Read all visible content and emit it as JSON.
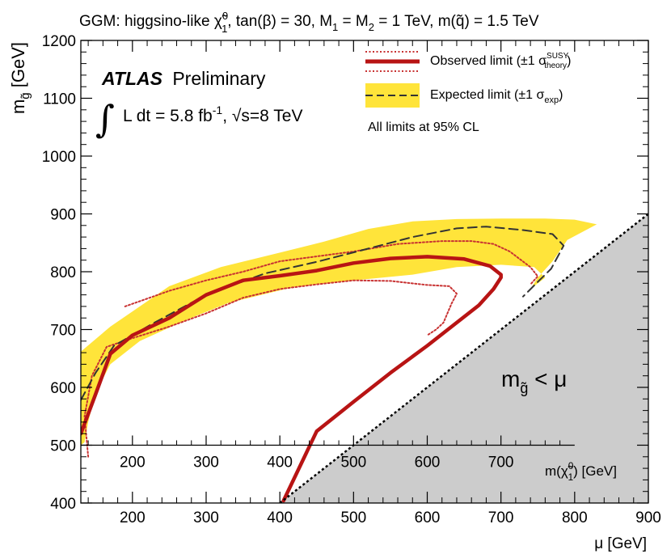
{
  "chart_data": {
    "type": "line",
    "title": "GGM: higgsino-like χ̃₁⁰, tan(β) = 30, M₁ = M₂ = 1 TeV, m(q̃) = 1.5 TeV",
    "title_parts": {
      "lead": "GGM: higgsino-like ",
      "chi": "χ̃",
      "sup0": "0",
      "sub1": "1",
      "rest1": ", tan(β) = 30, M",
      "m1_sub": "1",
      "rest2": " = M",
      "m2_sub": "2",
      "rest3": " = 1 TeV, m(",
      "q": "q̃",
      "rest4": ") = 1.5 TeV"
    },
    "xlabel": "μ [GeV]",
    "ylabel": {
      "m": "m",
      "sub": "g̃",
      "unit": " [GeV]"
    },
    "xlim": [
      130,
      900
    ],
    "ylim": [
      400,
      1200
    ],
    "x_ticks": [
      200,
      300,
      400,
      500,
      600,
      700,
      800,
      900
    ],
    "y_ticks": [
      400,
      500,
      600,
      700,
      800,
      900,
      1000,
      1100,
      1200
    ],
    "secondary_axis": {
      "label": {
        "m": "m(",
        "chi": "χ̃",
        "sup": "0",
        "sub": "1",
        "unit": ") [GeV]"
      },
      "ticks": [
        200,
        300,
        400,
        500,
        600,
        700
      ],
      "y_position": 500,
      "xmax": 800
    },
    "experiment": {
      "name": "ATLAS",
      "status": "Preliminary"
    },
    "luminosity": {
      "text": "L dt = 5.8 fb",
      "exp": "-1",
      "energy": "s=8 TeV",
      "sqrt": "√"
    },
    "legend": {
      "observed": "Observed limit (±1 σ",
      "observed_sup": "SUSY",
      "observed_sub": "theory",
      "observed_close": ")",
      "expected": "Expected limit (±1 σ",
      "expected_sub": "exp",
      "expected_close": ")",
      "note": "All limits at 95% CL"
    },
    "excluded_region_label": {
      "m": "m",
      "sub": "g̃",
      "rest": " < μ"
    },
    "colors": {
      "observed": "#b81414",
      "theory_band": "#c83232",
      "expected": "#333333",
      "expected_band": "#ffe43a",
      "excluded": "#cccccc"
    },
    "series": [
      {
        "name": "expected_band_outer",
        "points": [
          [
            130,
            662
          ],
          [
            170,
            705
          ],
          [
            250,
            775
          ],
          [
            320,
            808
          ],
          [
            400,
            833
          ],
          [
            460,
            852
          ],
          [
            520,
            874
          ],
          [
            580,
            887
          ],
          [
            640,
            891
          ],
          [
            700,
            892
          ],
          [
            760,
            892
          ],
          [
            800,
            890
          ],
          [
            830,
            882
          ],
          [
            790,
            855
          ],
          [
            770,
            818
          ],
          [
            750,
            790
          ],
          [
            740,
            770
          ]
        ]
      },
      {
        "name": "expected_band_inner",
        "points": [
          [
            740,
            770
          ],
          [
            760,
            790
          ],
          [
            745,
            808
          ],
          [
            700,
            812
          ],
          [
            640,
            808
          ],
          [
            580,
            795
          ],
          [
            500,
            785
          ],
          [
            420,
            774
          ],
          [
            330,
            746
          ],
          [
            270,
            715
          ],
          [
            210,
            680
          ],
          [
            170,
            640
          ],
          [
            150,
            590
          ],
          [
            140,
            540
          ],
          [
            135,
            505
          ],
          [
            130,
            500
          ]
        ]
      },
      {
        "name": "expected",
        "points": [
          [
            130,
            578
          ],
          [
            150,
            625
          ],
          [
            175,
            672
          ],
          [
            230,
            712
          ],
          [
            300,
            760
          ],
          [
            380,
            797
          ],
          [
            450,
            817
          ],
          [
            520,
            840
          ],
          [
            580,
            860
          ],
          [
            640,
            875
          ],
          [
            680,
            878
          ],
          [
            730,
            872
          ],
          [
            770,
            865
          ],
          [
            785,
            845
          ],
          [
            768,
            805
          ],
          [
            752,
            785
          ],
          [
            730,
            757
          ]
        ]
      },
      {
        "name": "observed",
        "points": [
          [
            130,
            520
          ],
          [
            150,
            588
          ],
          [
            170,
            658
          ],
          [
            200,
            690
          ],
          [
            250,
            720
          ],
          [
            300,
            760
          ],
          [
            350,
            785
          ],
          [
            400,
            793
          ],
          [
            450,
            802
          ],
          [
            500,
            815
          ],
          [
            550,
            823
          ],
          [
            600,
            826
          ],
          [
            650,
            822
          ],
          [
            685,
            810
          ],
          [
            700,
            795
          ],
          [
            700,
            790
          ],
          [
            690,
            770
          ],
          [
            670,
            742
          ],
          [
            640,
            712
          ],
          [
            600,
            672
          ],
          [
            550,
            625
          ],
          [
            500,
            575
          ],
          [
            450,
            524
          ],
          [
            405,
            404
          ]
        ]
      },
      {
        "name": "observed_plus1sigma",
        "points": [
          [
            190,
            740
          ],
          [
            250,
            767
          ],
          [
            300,
            785
          ],
          [
            350,
            800
          ],
          [
            400,
            818
          ],
          [
            500,
            835
          ],
          [
            560,
            848
          ],
          [
            620,
            853
          ],
          [
            660,
            853
          ],
          [
            690,
            848
          ],
          [
            712,
            835
          ],
          [
            740,
            808
          ],
          [
            750,
            792
          ],
          [
            740,
            778
          ]
        ]
      },
      {
        "name": "observed_minus1sigma",
        "points": [
          [
            140,
            480
          ],
          [
            135,
            550
          ],
          [
            145,
            620
          ],
          [
            165,
            670
          ],
          [
            200,
            685
          ],
          [
            250,
            705
          ],
          [
            300,
            728
          ],
          [
            350,
            755
          ],
          [
            400,
            770
          ],
          [
            450,
            778
          ],
          [
            500,
            785
          ],
          [
            550,
            784
          ],
          [
            600,
            777
          ],
          [
            630,
            775
          ],
          [
            640,
            762
          ],
          [
            633,
            745
          ],
          [
            628,
            730
          ],
          [
            622,
            712
          ],
          [
            612,
            700
          ],
          [
            600,
            690
          ]
        ]
      },
      {
        "name": "kinematic_limit_m_gluino_eq_mu",
        "points": [
          [
            400,
            400
          ],
          [
            900,
            900
          ]
        ]
      }
    ]
  }
}
